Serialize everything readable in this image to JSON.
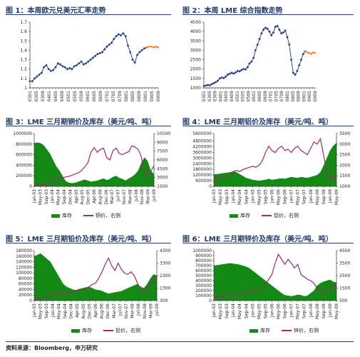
{
  "source": "资料来源：Bloomberg，申万研究",
  "colors": {
    "fx_line": "#1f3a8a",
    "fx_marker": "#1f3a8a",
    "fx_forecast": "#ff7a1a",
    "stock_fill": "#138a13",
    "price_line": "#9e2a6a",
    "title": "#1f3a6b"
  },
  "chart_data": [
    {
      "id": "fig1",
      "type": "line",
      "title": "图 1：本周欧元兑美元汇率走势",
      "ylim": [
        1,
        1.7
      ],
      "yticks": [
        "1",
        "1.1",
        "1.2",
        "1.3",
        "1.4",
        "1.5",
        "1.6",
        "1.7"
      ],
      "xticks": [
        "0301",
        "0303",
        "0305",
        "0307",
        "0309",
        "0311",
        "0401",
        "0403",
        "0405",
        "0407",
        "0409",
        "0411",
        "0501",
        "0503",
        "0505",
        "0507",
        "0509",
        "0511",
        "0601",
        "0603",
        "0605",
        "0607",
        "0609",
        "0611",
        "0701",
        "0703",
        "0705",
        "0707",
        "0709",
        "0711",
        "0801",
        "0803",
        "0805",
        "0807",
        "0809",
        "0811",
        "0901",
        "0903",
        "0905",
        "0907",
        "0909"
      ],
      "xtick_step": 2,
      "series": [
        {
          "values": [
            1.07,
            1.07,
            1.1,
            1.12,
            1.14,
            1.16,
            1.22,
            1.24,
            1.2,
            1.18,
            1.19,
            1.22,
            1.26,
            1.25,
            1.23,
            1.22,
            1.2,
            1.21,
            1.2,
            1.23,
            1.24,
            1.26,
            1.28,
            1.25,
            1.26,
            1.28,
            1.3,
            1.32,
            1.34,
            1.36,
            1.37,
            1.38,
            1.41,
            1.44,
            1.46,
            1.48,
            1.52,
            1.55,
            1.57,
            1.56,
            1.58,
            1.55,
            1.45,
            1.38,
            1.3,
            1.27,
            1.35,
            1.38,
            1.4,
            1.42,
            1.43
          ]
        },
        {
          "values": [
            1.43,
            1.44,
            1.44,
            1.43,
            1.44,
            1.43
          ],
          "start": 50
        }
      ]
    },
    {
      "id": "fig2",
      "type": "line",
      "title": "图 2：本周 LME 综合指数走势",
      "ylim": [
        1000,
        4500
      ],
      "yticks": [
        "1000",
        "1500",
        "2000",
        "2500",
        "3000",
        "3500",
        "4000",
        "4500"
      ],
      "xticks": [
        "0301",
        "0303",
        "0305",
        "0307",
        "0309",
        "0311",
        "0401",
        "0403",
        "0405",
        "0407",
        "0409",
        "0411",
        "0501",
        "0503",
        "0505",
        "0507",
        "0509",
        "0511",
        "0601",
        "0603",
        "0605",
        "0607",
        "0609",
        "0611",
        "0701",
        "0703",
        "0705",
        "0707",
        "0709",
        "0711",
        "0801",
        "0803",
        "0805",
        "0807",
        "0809",
        "0811",
        "0901",
        "0903",
        "0905",
        "0907",
        "0909"
      ],
      "xtick_step": 2,
      "series": [
        {
          "values": [
            1100,
            1120,
            1150,
            1130,
            1200,
            1250,
            1300,
            1380,
            1500,
            1550,
            1520,
            1600,
            1700,
            1750,
            1800,
            1760,
            1820,
            1900,
            1880,
            1950,
            2000,
            1980,
            2100,
            2300,
            2400,
            2600,
            3000,
            3300,
            3600,
            3900,
            4100,
            4200,
            4150,
            4000,
            3800,
            3950,
            4250,
            4300,
            4100,
            3900,
            3950,
            4050,
            3700,
            3300,
            2500,
            1800,
            1700,
            1900,
            2200,
            2500,
            2800,
            2950
          ]
        },
        {
          "values": [
            2950,
            2900,
            2850,
            2800,
            2900,
            2850
          ],
          "start": 51
        }
      ]
    },
    {
      "id": "fig3",
      "type": "area",
      "title": "图 3：LME 三月期铜价及库存（美元/吨、吨）",
      "y1lim": [
        0,
        1000000
      ],
      "y2lim": [
        1500,
        10500
      ],
      "y1ticks": [
        "0",
        "200000",
        "400000",
        "600000",
        "800000",
        "1000000"
      ],
      "y2ticks": [
        "1500",
        "3000",
        "4500",
        "6000",
        "7500",
        "9000",
        "10500"
      ],
      "xticks": [
        "Jan-03",
        "May-03",
        "Sep-03",
        "Jan-04",
        "May-04",
        "Sep-04",
        "Dec-04",
        "Apr-05",
        "Aug-05",
        "Dec-05",
        "Apr-06",
        "Aug-06",
        "Dec-06",
        "Mar-07",
        "Jul-07",
        "Nov-07",
        "Mar-08",
        "Jul-08",
        "Nov-08",
        "Mar-09",
        "Jul-09"
      ],
      "legend": [
        "库存",
        "铜价，右侧"
      ],
      "stock": [
        820000,
        830000,
        820000,
        780000,
        700000,
        620000,
        500000,
        380000,
        300000,
        200000,
        100000,
        70000,
        60000,
        70000,
        90000,
        110000,
        130000,
        110000,
        90000,
        100000,
        110000,
        130000,
        150000,
        120000,
        140000,
        180000,
        200000,
        160000,
        140000,
        110000,
        150000,
        180000,
        230000,
        300000,
        450000,
        550000,
        480000,
        300000,
        230000
      ],
      "price": [
        1650,
        1700,
        1750,
        1800,
        1900,
        2100,
        2500,
        2800,
        2900,
        2950,
        3100,
        3200,
        3400,
        3600,
        3800,
        4200,
        4800,
        5500,
        7300,
        8100,
        7300,
        7800,
        8000,
        6400,
        6000,
        7600,
        8000,
        7100,
        6900,
        7200,
        7400,
        8400,
        8200,
        7800,
        6500,
        3500,
        3200,
        4100,
        5000
      ]
    },
    {
      "id": "fig4",
      "type": "area",
      "title": "图 4：LME 三月期铝价及库存（美元/吨、吨）",
      "y1lim": [
        0,
        5600000
      ],
      "y2lim": [
        1000,
        3500
      ],
      "y1ticks": [
        "0",
        "600000",
        "1200000",
        "1800000",
        "2400000",
        "3000000",
        "3600000",
        "4200000",
        "4800000",
        "5600000"
      ],
      "y2ticks": [
        "1000",
        "1500",
        "2000",
        "2500",
        "3000",
        "3500"
      ],
      "xticks": [
        "Jan-03",
        "May-03",
        "Sep-03",
        "Jan-04",
        "May-04",
        "Sep-04",
        "Jan-05",
        "May-05",
        "Sep-05",
        "Jan-06",
        "May-06",
        "Sep-06",
        "Jan-07",
        "May-07",
        "Sep-07",
        "Jan-08",
        "May-08",
        "Sep-08",
        "Jan-09",
        "May-09"
      ],
      "legend": [
        "库存",
        "铝价，右侧"
      ],
      "stock": [
        1300000,
        1300000,
        1350000,
        1400000,
        1450000,
        1500000,
        1600000,
        1500000,
        1300000,
        1100000,
        900000,
        800000,
        700000,
        650000,
        600000,
        650000,
        700000,
        800000,
        700000,
        750000,
        800000,
        850000,
        800000,
        900000,
        1000000,
        950000,
        900000,
        1000000,
        950000,
        900000,
        1000000,
        1100000,
        1200000,
        1500000,
        2200000,
        3000000,
        3800000,
        4300000,
        4600000
      ],
      "price": [
        1400,
        1380,
        1420,
        1450,
        1500,
        1600,
        1700,
        1750,
        1700,
        1800,
        1850,
        1900,
        1950,
        1900,
        2000,
        2200,
        2600,
        2900,
        2700,
        2600,
        2800,
        2900,
        2700,
        2750,
        2600,
        2800,
        2900,
        2700,
        2600,
        2500,
        2800,
        3100,
        3000,
        3250,
        2500,
        1600,
        1300,
        1400,
        1600
      ]
    },
    {
      "id": "fig5",
      "type": "area",
      "title": "图 5：LME 三月期铅价及库存（美元/吨、吨）",
      "y1lim": [
        0,
        180000
      ],
      "y2lim": [
        300,
        4300
      ],
      "y1ticks": [
        "0",
        "20000",
        "40000",
        "60000",
        "80000",
        "100000",
        "120000",
        "140000",
        "160000",
        "180000"
      ],
      "y2ticks": [
        "300",
        "1300",
        "2300",
        "3300",
        "4300"
      ],
      "xticks": [
        "Jan-03",
        "May-03",
        "Sep-03",
        "Jan-04",
        "May-04",
        "Sep-04",
        "Dec-04",
        "Apr-05",
        "Aug-05",
        "Dec-05",
        "Apr-06",
        "Aug-06",
        "Dec-06",
        "Mar-07",
        "Jul-07",
        "Nov-07",
        "Mar-08",
        "Jul-08",
        "Nov-08",
        "Mar-09",
        "Jul-09"
      ],
      "legend": [
        "库存",
        "铅价，右侧"
      ],
      "stock": [
        160000,
        165000,
        170000,
        160000,
        150000,
        140000,
        120000,
        100000,
        80000,
        60000,
        50000,
        45000,
        40000,
        38000,
        42000,
        45000,
        48000,
        50000,
        45000,
        40000,
        38000,
        35000,
        30000,
        25000,
        28000,
        30000,
        32000,
        34000,
        40000,
        45000,
        50000,
        55000,
        60000,
        50000,
        45000,
        60000,
        80000,
        95000,
        90000
      ],
      "price": [
        450,
        480,
        500,
        520,
        600,
        700,
        800,
        900,
        950,
        1000,
        950,
        1000,
        1050,
        1100,
        1200,
        1150,
        1300,
        1400,
        1600,
        1700,
        2100,
        2600,
        3200,
        3700,
        3100,
        2700,
        3300,
        2800,
        2500,
        2400,
        2600,
        2300,
        1700,
        1200,
        1000,
        1300,
        1600,
        1900,
        2000
      ]
    },
    {
      "id": "fig6",
      "type": "area",
      "title": "图 6：LME 三月期锌价及库存（美元/吨、吨）",
      "y1lim": [
        0,
        1000000
      ],
      "y2lim": [
        500,
        4500
      ],
      "y1ticks": [
        "0",
        "100000",
        "200000",
        "300000",
        "400000",
        "500000",
        "600000",
        "700000",
        "800000",
        "900000",
        "1000000"
      ],
      "y2ticks": [
        "500",
        "1500",
        "2500",
        "3500",
        "4500"
      ],
      "xticks": [
        "Jan-03",
        "May-03",
        "Sep-03",
        "Jan-04",
        "May-04",
        "Sep-04",
        "Jan-05",
        "May-05",
        "Sep-05",
        "Jan-06",
        "May-06",
        "Sep-06",
        "Jan-07",
        "May-07",
        "Sep-07",
        "Jan-08",
        "May-08",
        "Sep-08",
        "Jan-09",
        "May-09"
      ],
      "legend": [
        "库存",
        "锌价，右侧"
      ],
      "stock": [
        700000,
        710000,
        720000,
        730000,
        740000,
        750000,
        740000,
        730000,
        720000,
        700000,
        680000,
        650000,
        600000,
        550000,
        500000,
        450000,
        400000,
        350000,
        300000,
        250000,
        200000,
        150000,
        110000,
        100000,
        90000,
        100000,
        120000,
        110000,
        90000,
        100000,
        150000,
        200000,
        300000,
        350000,
        380000,
        400000,
        420000,
        380000,
        360000
      ],
      "price": [
        800,
        780,
        820,
        850,
        900,
        950,
        1000,
        1050,
        1100,
        1150,
        1200,
        1250,
        1300,
        1350,
        1400,
        1500,
        1800,
        2200,
        2600,
        3500,
        4200,
        3800,
        3400,
        3800,
        3500,
        3100,
        3400,
        2600,
        2400,
        2200,
        2100,
        1900,
        1500,
        1200,
        1100,
        1300,
        1500,
        1600,
        1800
      ]
    }
  ]
}
